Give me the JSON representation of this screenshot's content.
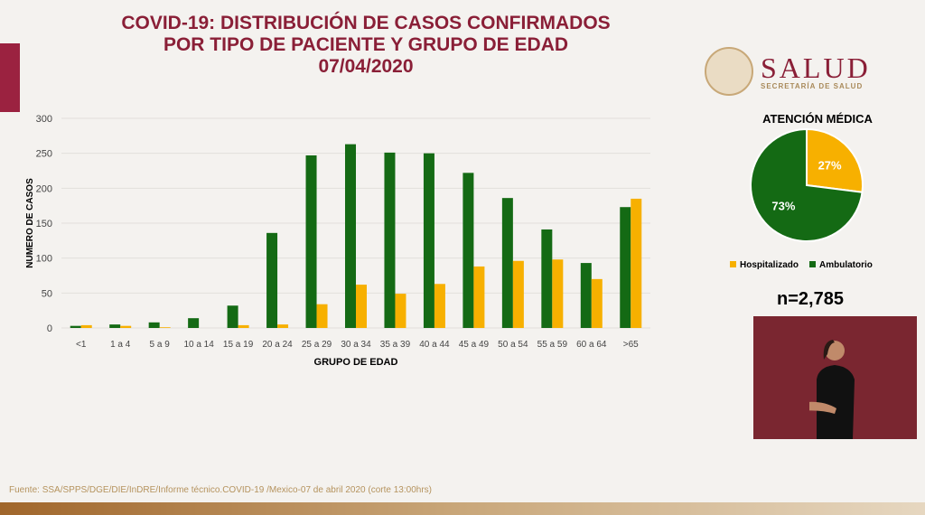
{
  "header": {
    "line1": "COVID-19: DISTRIBUCIÓN DE CASOS CONFIRMADOS",
    "line2": "POR TIPO DE PACIENTE Y GRUPO DE EDAD",
    "date": "07/04/2020"
  },
  "logo": {
    "name": "SALUD",
    "subtitle": "SECRETARÍA DE SALUD"
  },
  "chart_data": [
    {
      "type": "bar",
      "title": "",
      "xlabel": "GRUPO DE EDAD",
      "ylabel": "NUMERO DE CASOS",
      "ylim": [
        0,
        300
      ],
      "yticks": [
        0,
        50,
        100,
        150,
        200,
        250,
        300
      ],
      "grid": true,
      "categories": [
        "<1",
        "1 a 4",
        "5 a 9",
        "10 a 14",
        "15 a 19",
        "20 a 24",
        "25 a 29",
        "30 a 34",
        "35 a 39",
        "40 a 44",
        "45 a 49",
        "50 a 54",
        "55 a 59",
        "60 a 64",
        ">65"
      ],
      "series": [
        {
          "name": "Ambulatorio",
          "color": "#146a14",
          "values": [
            3,
            5,
            8,
            14,
            32,
            136,
            247,
            263,
            251,
            250,
            222,
            186,
            141,
            93,
            173
          ]
        },
        {
          "name": "Hospitalizado",
          "color": "#f7b000",
          "values": [
            4,
            3,
            1,
            0,
            4,
            5,
            34,
            62,
            49,
            63,
            88,
            96,
            98,
            70,
            185
          ]
        }
      ]
    },
    {
      "type": "pie",
      "title": "ATENCIÓN MÉDICA",
      "slices": [
        {
          "name": "Hospitalizado",
          "value": 27,
          "label": "27%",
          "color": "#f7b000"
        },
        {
          "name": "Ambulatorio",
          "value": 73,
          "label": "73%",
          "color": "#146a14"
        }
      ]
    }
  ],
  "total": "n=2,785",
  "source": "Fuente: SSA/SPPS/DGE/DIE/InDRE/Informe técnico.COVID-19 /Mexico-07 de abril 2020 (corte 13:00hrs)"
}
